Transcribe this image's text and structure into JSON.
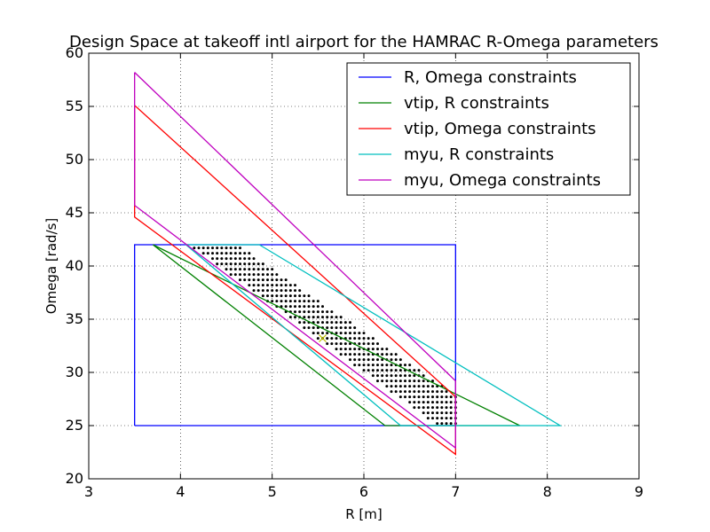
{
  "chart_data": {
    "type": "line",
    "title": "Design Space at takeoff intl airport for the HAMRAC R-Omega parameters",
    "xlabel": "R [m]",
    "ylabel": "Omega [rad/s]",
    "xlim": [
      3,
      9
    ],
    "ylim": [
      20,
      60
    ],
    "xticks": [
      3,
      4,
      5,
      6,
      7,
      8,
      9
    ],
    "yticks": [
      20,
      25,
      30,
      35,
      40,
      45,
      50,
      55,
      60
    ],
    "grid": true,
    "legend_position": "top-right",
    "series": [
      {
        "name": "R, Omega constraints",
        "color": "#0000ff",
        "x": [
          3.5,
          7.0,
          7.0,
          3.5,
          3.5
        ],
        "y": [
          25,
          25,
          42,
          42,
          25
        ]
      },
      {
        "name": "vtip, R constraints",
        "color": "#008000",
        "x": [
          3.7,
          7.7,
          6.23,
          3.7
        ],
        "y": [
          42,
          25,
          25,
          42
        ]
      },
      {
        "name": "vtip, Omega constraints",
        "color": "#ff0000",
        "x": [
          3.5,
          7.0,
          7.0,
          3.5,
          3.5
        ],
        "y": [
          55.1,
          27.7,
          22.3,
          44.6,
          55.1
        ]
      },
      {
        "name": "myu, R constraints",
        "color": "#00bfbf",
        "x": [
          4.86,
          8.14,
          6.4,
          4.06,
          4.86
        ],
        "y": [
          42,
          25,
          25,
          42,
          42
        ]
      },
      {
        "name": "myu, Omega constraints",
        "color": "#bf00bf",
        "x": [
          3.5,
          7.0,
          7.0,
          3.5,
          3.5
        ],
        "y": [
          58.2,
          29.2,
          22.9,
          45.7,
          58.2
        ]
      }
    ],
    "feasible_region": {
      "marker": "dot",
      "color": "#000000",
      "polygon": [
        [
          4.1,
          42
        ],
        [
          4.62,
          42
        ],
        [
          7.0,
          27.9
        ],
        [
          7.0,
          25
        ],
        [
          6.8,
          25
        ],
        [
          4.1,
          42
        ]
      ]
    },
    "design_point": {
      "x": 5.55,
      "y": 33.2,
      "color": "#bfbf00",
      "marker": "x"
    }
  }
}
